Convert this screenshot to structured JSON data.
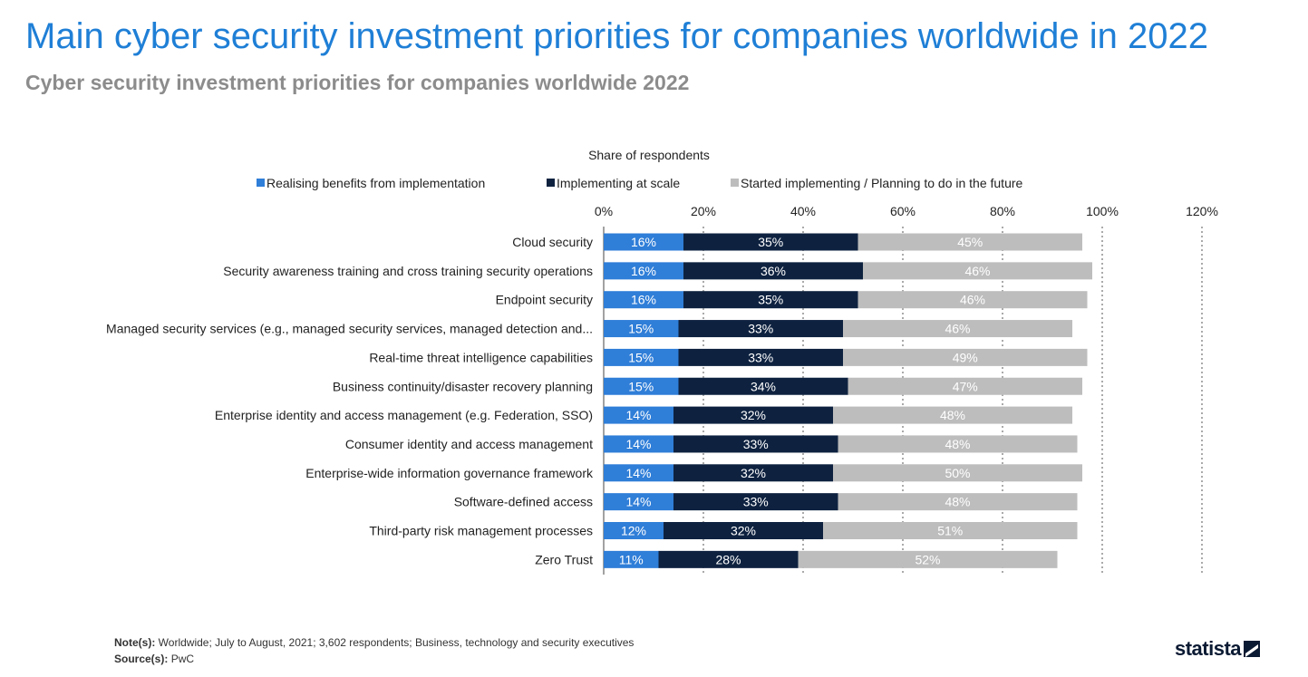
{
  "title": "Main cyber security investment priorities for companies worldwide in 2022",
  "subtitle": "Cyber security investment priorities for companies worldwide 2022",
  "notes_label": "Note(s):",
  "notes": "Worldwide; July to August, 2021; 3,602 respondents; Business, technology and security executives",
  "source_label": "Source(s):",
  "source": "PwC",
  "brand": "statista",
  "chart_data": {
    "type": "bar",
    "orientation": "horizontal",
    "stacked": true,
    "xlabel": "Share of respondents",
    "xlim": [
      0,
      120
    ],
    "ticks": [
      0,
      20,
      40,
      60,
      80,
      100,
      120
    ],
    "tick_labels": [
      "0%",
      "20%",
      "40%",
      "60%",
      "80%",
      "100%",
      "120%"
    ],
    "grid": "vertical dotted",
    "legend_position": "top",
    "categories": [
      "Cloud security",
      "Security awareness training and cross training security operations",
      "Endpoint security",
      "Managed security services (e.g., managed security services, managed detection and...",
      "Real-time threat intelligence capabilities",
      "Business continuity/disaster recovery planning",
      "Enterprise identity and access management (e.g. Federation, SSO)",
      "Consumer identity and access management",
      "Enterprise-wide information governance framework",
      "Software-defined access",
      "Third-party risk management processes",
      "Zero Trust"
    ],
    "series": [
      {
        "name": "Realising benefits from implementation",
        "color": "#2f7ed8",
        "label_color": "#ffffff",
        "values": [
          16,
          16,
          16,
          15,
          15,
          15,
          14,
          14,
          14,
          14,
          12,
          11
        ]
      },
      {
        "name": "Implementing at scale",
        "color": "#0e2240",
        "label_color": "#ffffff",
        "values": [
          35,
          36,
          35,
          33,
          33,
          34,
          32,
          33,
          32,
          33,
          32,
          28
        ]
      },
      {
        "name": "Started implementing / Planning to do in the future",
        "color": "#bdbdbd",
        "label_color": "#ffffff",
        "values": [
          45,
          46,
          46,
          46,
          49,
          47,
          48,
          48,
          50,
          48,
          51,
          52
        ]
      }
    ]
  }
}
